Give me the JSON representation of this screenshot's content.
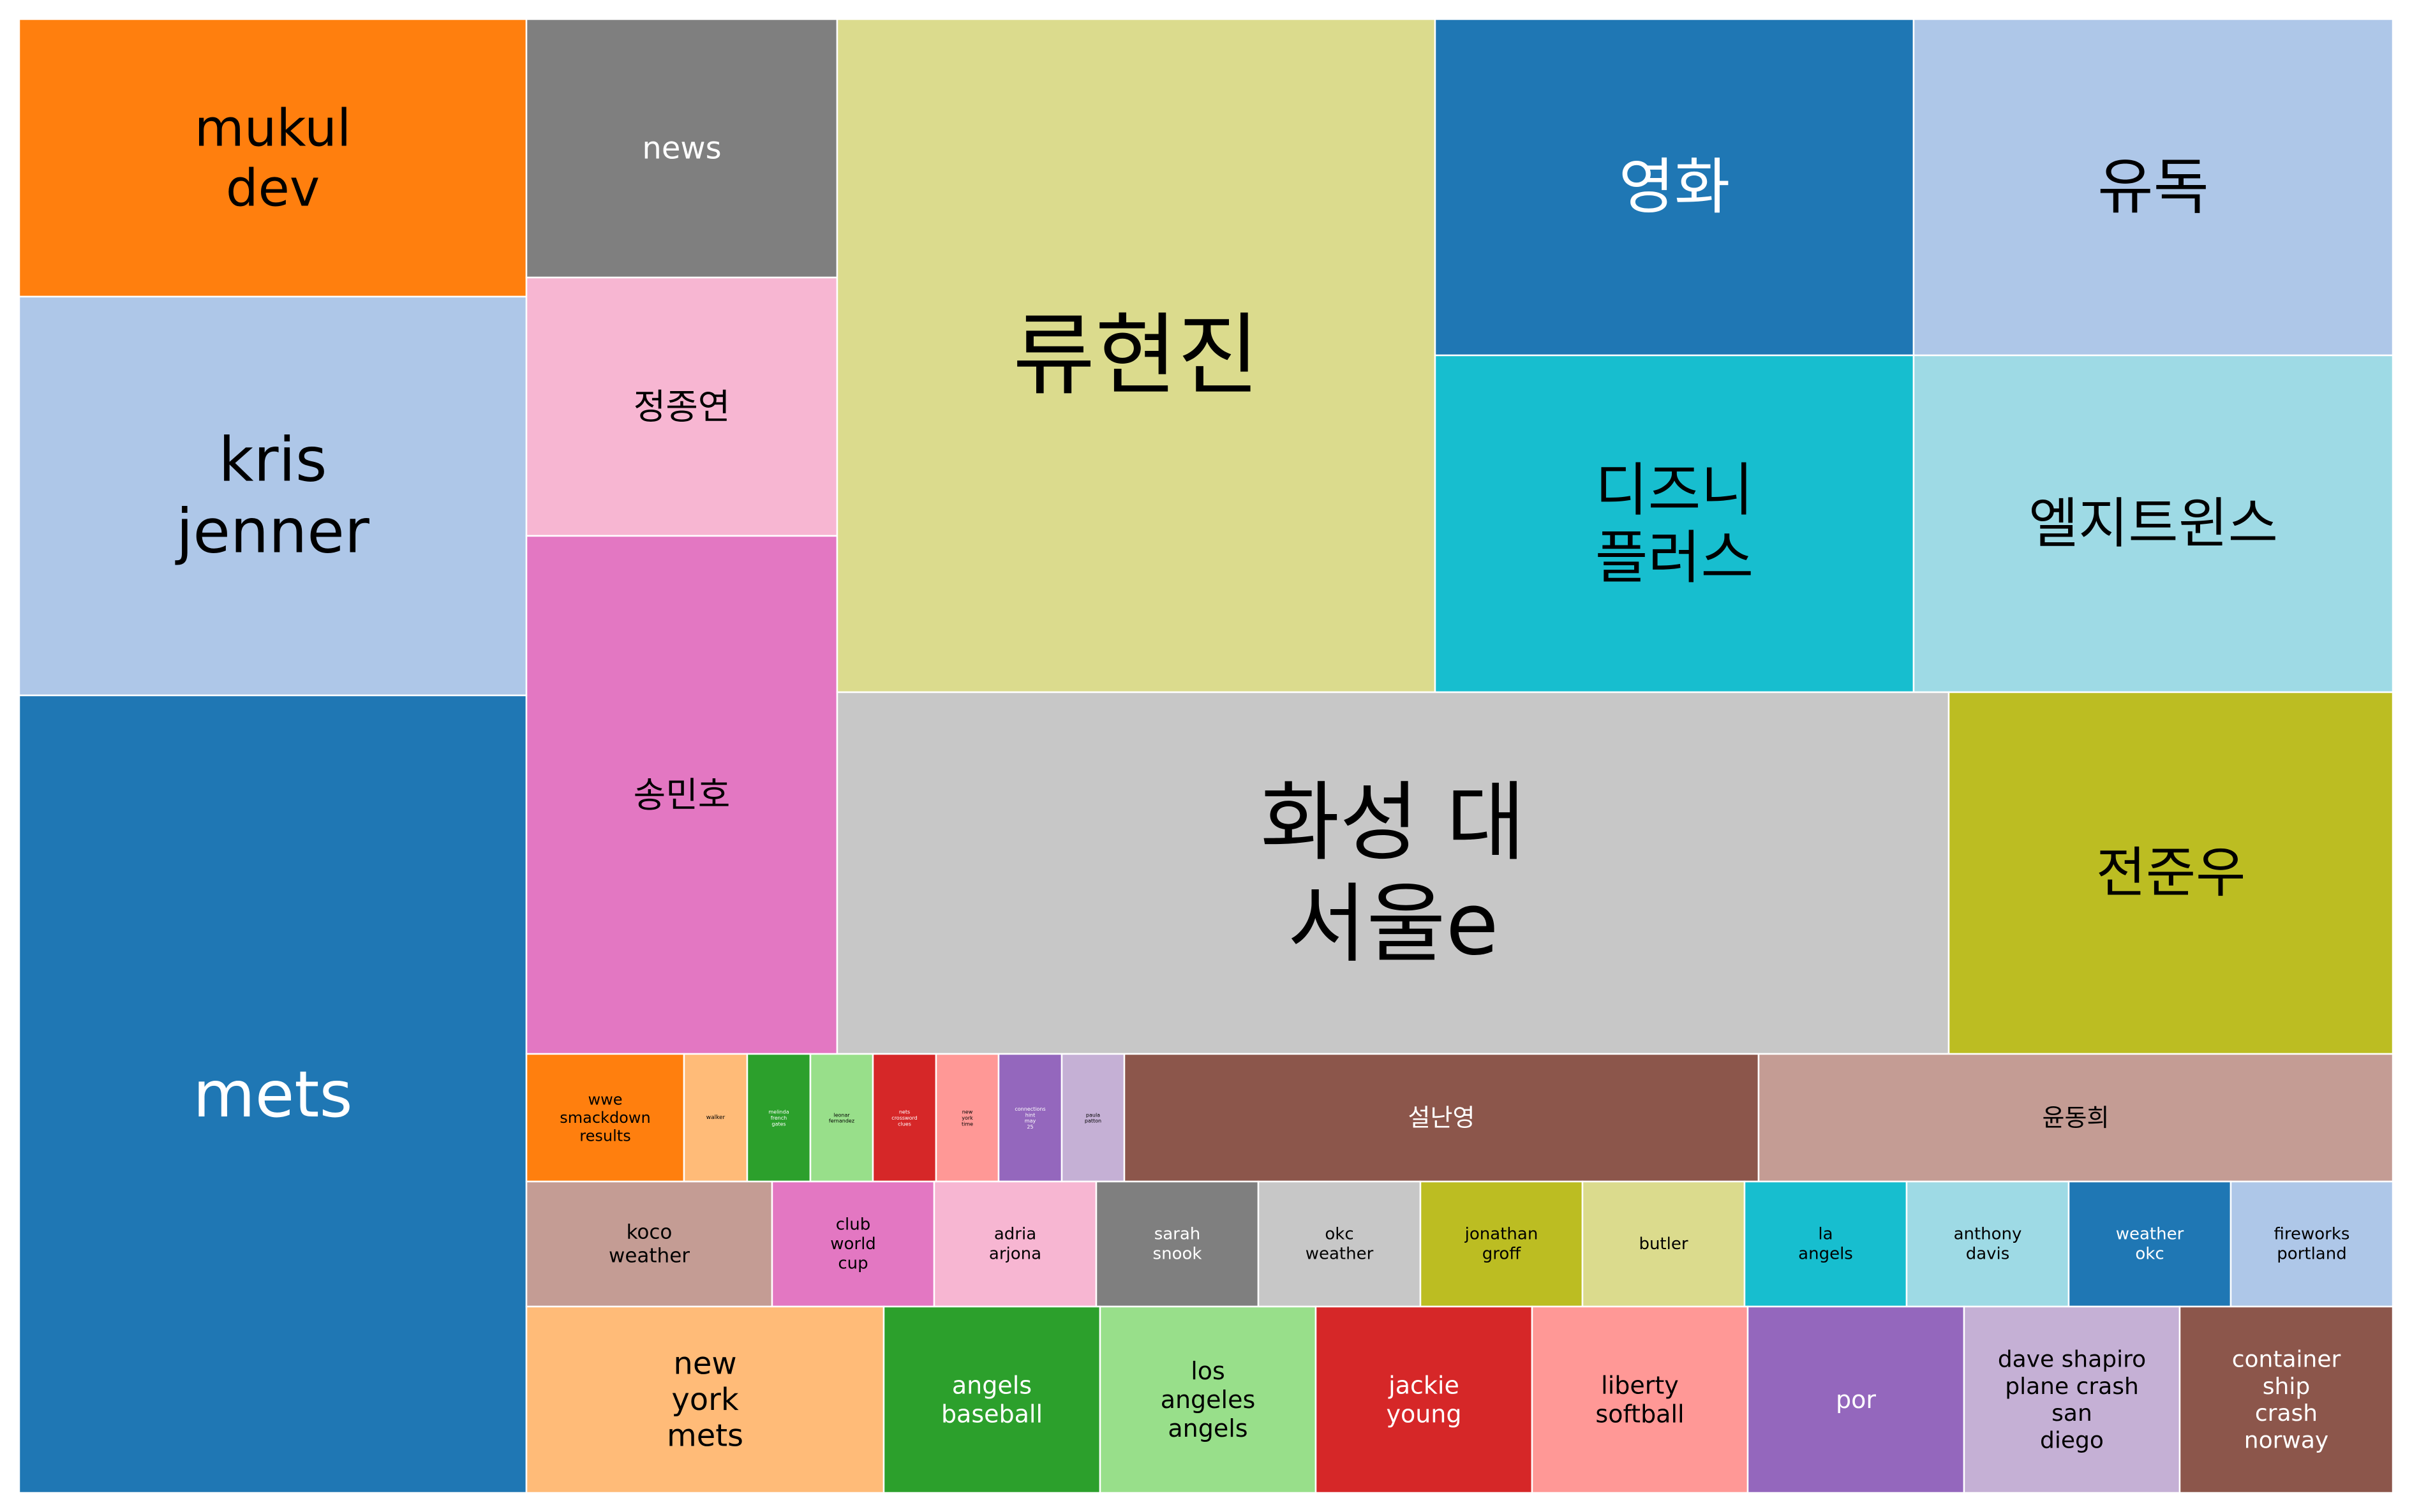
{
  "chart_data": {
    "type": "treemap",
    "title": "",
    "items": [
      {
        "label": "mukul\ndev",
        "color": "#ff7f0e",
        "text_color": "#000000"
      },
      {
        "label": "kris\njenner",
        "color": "#aec7e8",
        "text_color": "#000000"
      },
      {
        "label": "mets",
        "color": "#1f77b4",
        "text_color": "#ffffff"
      },
      {
        "label": "news",
        "color": "#7f7f7f",
        "text_color": "#ffffff"
      },
      {
        "label": "정종연",
        "color": "#f7b6d2",
        "text_color": "#000000"
      },
      {
        "label": "송민호",
        "color": "#e377c2",
        "text_color": "#000000"
      },
      {
        "label": "류현진",
        "color": "#dbdb8d",
        "text_color": "#000000"
      },
      {
        "label": "영화",
        "color": "#1f77b4",
        "text_color": "#ffffff"
      },
      {
        "label": "유독",
        "color": "#aec7e8",
        "text_color": "#000000"
      },
      {
        "label": "디즈니\n플러스",
        "color": "#17becf",
        "text_color": "#000000"
      },
      {
        "label": "엘지트윈스",
        "color": "#9edae5",
        "text_color": "#000000"
      },
      {
        "label": "화성 대\n서울e",
        "color": "#c7c7c7",
        "text_color": "#000000"
      },
      {
        "label": "전준우",
        "color": "#bcbd22",
        "text_color": "#000000"
      },
      {
        "label": "wwe\nsmackdown\nresults",
        "color": "#ff7f0e",
        "text_color": "#000000"
      },
      {
        "label": "walker",
        "color": "#ffbb78",
        "text_color": "#000000"
      },
      {
        "label": "melinda\nfrench\ngates",
        "color": "#2ca02c",
        "text_color": "#ffffff"
      },
      {
        "label": "leonar\nfernandez",
        "color": "#98df8a",
        "text_color": "#000000"
      },
      {
        "label": "nets\ncrossword\nclues",
        "color": "#d62728",
        "text_color": "#ffffff"
      },
      {
        "label": "new\nyork\ntime",
        "color": "#ff9896",
        "text_color": "#000000"
      },
      {
        "label": "connections\nhint\nmay\n25",
        "color": "#9467bd",
        "text_color": "#ffffff"
      },
      {
        "label": "paula\npatton",
        "color": "#c5b0d5",
        "text_color": "#000000"
      },
      {
        "label": "설난영",
        "color": "#8c564b",
        "text_color": "#ffffff"
      },
      {
        "label": "윤동희",
        "color": "#c49c94",
        "text_color": "#000000"
      },
      {
        "label": "koco\nweather",
        "color": "#c49c94",
        "text_color": "#000000"
      },
      {
        "label": "club\nworld\ncup",
        "color": "#e377c2",
        "text_color": "#000000"
      },
      {
        "label": "adria\narjona",
        "color": "#f7b6d2",
        "text_color": "#000000"
      },
      {
        "label": "sarah\nsnook",
        "color": "#7f7f7f",
        "text_color": "#ffffff"
      },
      {
        "label": "okc\nweather",
        "color": "#c7c7c7",
        "text_color": "#000000"
      },
      {
        "label": "jonathan\ngroff",
        "color": "#bcbd22",
        "text_color": "#000000"
      },
      {
        "label": "butler",
        "color": "#dbdb8d",
        "text_color": "#000000"
      },
      {
        "label": "la\nangels",
        "color": "#17becf",
        "text_color": "#000000"
      },
      {
        "label": "anthony\ndavis",
        "color": "#9edae5",
        "text_color": "#000000"
      },
      {
        "label": "weather\nokc",
        "color": "#1f77b4",
        "text_color": "#ffffff"
      },
      {
        "label": "fireworks\nportland",
        "color": "#aec7e8",
        "text_color": "#000000"
      },
      {
        "label": "new\nyork\nmets",
        "color": "#ffbb78",
        "text_color": "#000000"
      },
      {
        "label": "angels\nbaseball",
        "color": "#2ca02c",
        "text_color": "#ffffff"
      },
      {
        "label": "los\nangeles\nangels",
        "color": "#98df8a",
        "text_color": "#000000"
      },
      {
        "label": "jackie\nyoung",
        "color": "#d62728",
        "text_color": "#ffffff"
      },
      {
        "label": "liberty\nsoftball",
        "color": "#ff9896",
        "text_color": "#000000"
      },
      {
        "label": "por",
        "color": "#9467bd",
        "text_color": "#ffffff"
      },
      {
        "label": "dave shapiro\nplane crash\nsan\ndiego",
        "color": "#c5b0d5",
        "text_color": "#000000"
      },
      {
        "label": "container\nship\ncrash\nnorway",
        "color": "#8c564b",
        "text_color": "#ffffff"
      }
    ]
  }
}
